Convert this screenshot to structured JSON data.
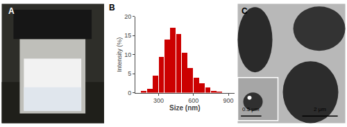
{
  "chart_data": {
    "type": "histogram",
    "title": "B",
    "bins": [
      150,
      200,
      250,
      300,
      350,
      400,
      450,
      500,
      550,
      600,
      650,
      700,
      750,
      800,
      850
    ],
    "values": [
      0.5,
      1.0,
      4.5,
      9.5,
      14.0,
      17.0,
      15.5,
      10.5,
      6.5,
      4.0,
      2.5,
      1.5,
      0.5,
      0.2
    ],
    "color": "#CC0000",
    "xlabel": "Size (nm)",
    "ylabel": "Intensity (%)",
    "xlim": [
      100,
      950
    ],
    "ylim": [
      0,
      20
    ],
    "xticks": [
      300,
      600,
      900
    ],
    "yticks": [
      0,
      5,
      10,
      15,
      20
    ],
    "grid": false,
    "annotations": [
      "A",
      "C",
      "0.5 μm",
      "2 μm"
    ]
  }
}
